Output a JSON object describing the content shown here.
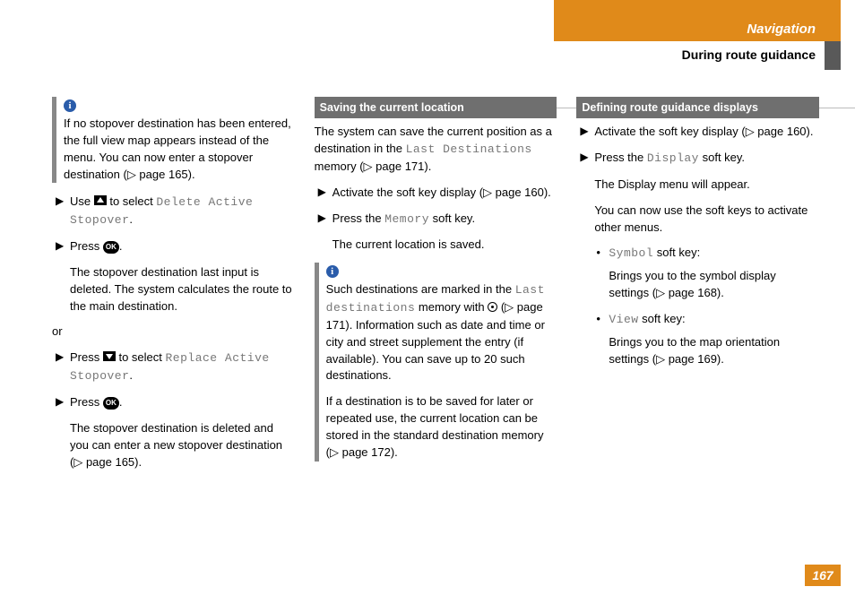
{
  "header": {
    "nav": "Navigation",
    "sub": "During route guidance"
  },
  "page_number": "167",
  "colors": {
    "accent": "#e08a1a",
    "info": "#2a5caa",
    "section_bg": "#6f6f6f"
  },
  "col1": {
    "info1": "If no stopover destination has been entered, the full view map appears instead of the menu. You can now enter a stopover destination (▷ page 165).",
    "step1_pre": "Use ",
    "step1_post": " to select ",
    "step1_mono": "Delete Active Stopover",
    "step2": "Press ",
    "result1": "The stopover destination last input is deleted. The system calculates the route to the main destination.",
    "or": "or",
    "step3_pre": "Press ",
    "step3_post": " to select ",
    "step3_mono": "Replace Active Stopover",
    "step4": "Press ",
    "result2": "The stopover destination is deleted and you can enter a new stopover destination (▷ page 165)."
  },
  "col2": {
    "header": "Saving the current location",
    "intro_a": "The system can save the current position as a destination in the ",
    "intro_mono": "Last Destinations",
    "intro_b": " memory (▷ page 171).",
    "step1": "Activate the soft key display (▷ page 160).",
    "step2_a": "Press the ",
    "step2_mono": "Memory",
    "step2_b": " soft key.",
    "result1": "The current location is saved.",
    "info_a": "Such destinations are marked in the ",
    "info_mono": "Last destinations",
    "info_b": " memory with ",
    "info_c": " (▷ page 171). Information such as date and time or city and street supplement the entry (if available). You can save up to 20 such destinations.",
    "para2": "If a destination is to be saved for later or repeated use, the current location can be stored in the standard destination memory (▷ page 172)."
  },
  "col3": {
    "header": "Defining route guidance displays",
    "step1": "Activate the soft key display (▷ page 160).",
    "step2_a": "Press the ",
    "step2_mono": "Display",
    "step2_b": " soft key.",
    "result1": "The Display menu will appear.",
    "result2": "You can now use the soft keys to activate other menus.",
    "b1_mono": "Symbol",
    "b1_text": " soft key:",
    "b1_result": "Brings you to the symbol display settings (▷ page 168).",
    "b2_mono": "View",
    "b2_text": " soft key:",
    "b2_result": "Brings you to the map orientation settings (▷ page 169)."
  }
}
